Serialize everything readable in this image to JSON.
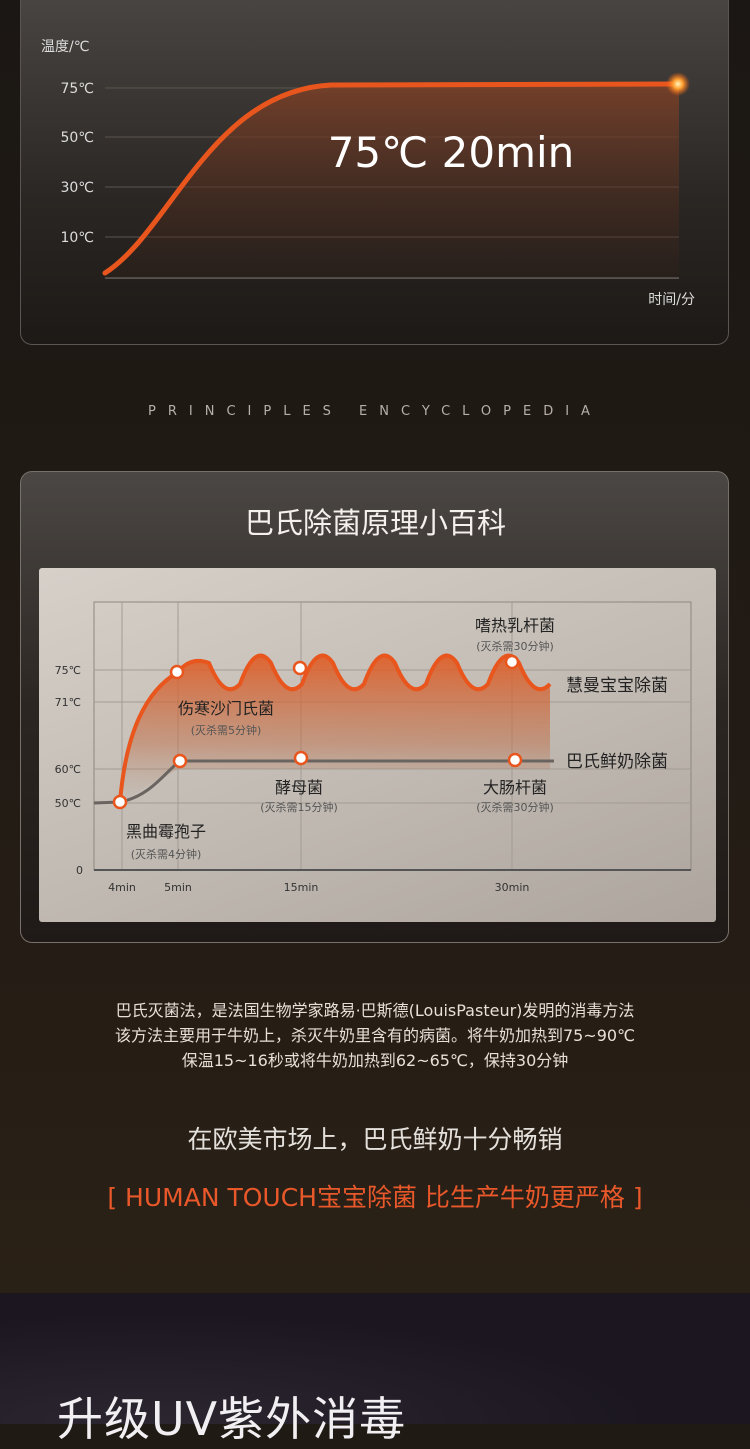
{
  "chart_data": [
    {
      "type": "line",
      "ylabel": "温度/℃",
      "xlabel": "时间/分",
      "y_ticks": [
        "75℃",
        "50℃",
        "30℃",
        "10℃"
      ],
      "annotation": "75℃ 20min",
      "plateau_value": 75,
      "grid": true,
      "colors": {
        "line": "#e8561e",
        "fill": "#6b3a24"
      }
    },
    {
      "type": "line",
      "y_ticks": [
        "75℃",
        "71℃",
        "60℃",
        "50℃",
        "0"
      ],
      "x_ticks": [
        "4min",
        "5min",
        "15min",
        "30min"
      ],
      "grid": true,
      "series": [
        {
          "name": "慧曼宝宝除菌",
          "x": [
            "4min",
            "5min",
            "15min",
            "30min"
          ],
          "values": [
            50,
            75,
            75,
            75
          ],
          "color": "#e8561e"
        },
        {
          "name": "巴氏鲜奶除菌",
          "x": [
            "4min",
            "5min",
            "15min",
            "30min"
          ],
          "values": [
            50,
            60,
            60,
            60
          ],
          "color": "#6a6460"
        }
      ],
      "annotations": [
        {
          "name": "黑曲霉孢子",
          "note": "(灭杀需4分钟)"
        },
        {
          "name": "伤寒沙门氏菌",
          "note": "(灭杀需5分钟)"
        },
        {
          "name": "酵母菌",
          "note": "(灭杀需15分钟)"
        },
        {
          "name": "嗜热乳杆菌",
          "note": "(灭杀需30分钟)"
        },
        {
          "name": "大肠杆菌",
          "note": "(灭杀需30分钟)"
        }
      ]
    }
  ],
  "section": {
    "eyebrow": "PRINCIPLES ENCYCLOPEDIA",
    "title": "巴氏除菌原理小百科"
  },
  "description": [
    "巴氏灭菌法，是法国生物学家路易·巴斯德(LouisPasteur)发明的消毒方法",
    "该方法主要用于牛奶上，杀灭牛奶里含有的病菌。将牛奶加热到75~90℃",
    "保温15~16秒或将牛奶加热到62~65℃，保持30分钟"
  ],
  "market_text": "在欧美市场上，巴氏鲜奶十分畅销",
  "slogan": "[ HUMAN TOUCH宝宝除菌 比生产牛奶更严格 ]",
  "next_section_title": "升级UV紫外消毒"
}
